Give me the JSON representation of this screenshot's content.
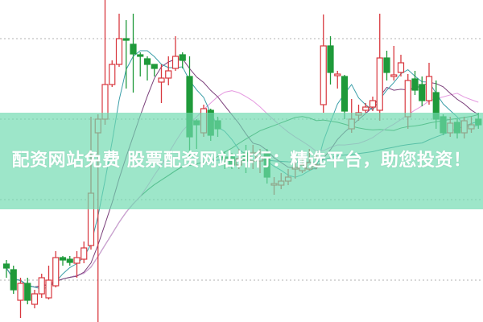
{
  "banner": {
    "title": "配资网站免费 股票配资网站排行：精选平台，助您投资！"
  },
  "colors": {
    "up": "#d8383f",
    "down": "#1f9a3a",
    "banner": "#6edaaf",
    "grid": "#b0b0b0",
    "ma5": "#3a9ea8",
    "ma10": "#7a3f7a",
    "ma20": "#e59ae0",
    "ma30": "#2f8f4f",
    "ma60": "#2e8c96"
  },
  "chart_data": {
    "type": "candlestick",
    "grid": "horizontal dotted",
    "moving_averages": [
      "ma5",
      "ma10",
      "ma20",
      "ma30",
      "ma60"
    ],
    "candles_ohlc_note_order": "open,close,high,low",
    "candles": [
      [
        72,
        67,
        77,
        55
      ],
      [
        65,
        40,
        70,
        35
      ],
      [
        27,
        48,
        55,
        5
      ],
      [
        48,
        27,
        55,
        22
      ],
      [
        22,
        35,
        40,
        17
      ],
      [
        35,
        55,
        60,
        30
      ],
      [
        30,
        52,
        70,
        28
      ],
      [
        45,
        80,
        88,
        43
      ],
      [
        80,
        77,
        82,
        70
      ],
      [
        78,
        74,
        82,
        70
      ],
      [
        73,
        80,
        88,
        55
      ],
      [
        78,
        92,
        100,
        73
      ],
      [
        95,
        160,
        255,
        90
      ],
      [
        235,
        252,
        258,
        0
      ],
      [
        252,
        295,
        400,
        245
      ],
      [
        295,
        320,
        325,
        292
      ],
      [
        320,
        352,
        383,
        317
      ],
      [
        352,
        350,
        375,
        290
      ],
      [
        345,
        333,
        383,
        285
      ],
      [
        332,
        330,
        335,
        305
      ],
      [
        327,
        320,
        330,
        300
      ],
      [
        320,
        315,
        320,
        305
      ],
      [
        298,
        303,
        320,
        272
      ],
      [
        303,
        312,
        330,
        294
      ],
      [
        315,
        330,
        355,
        312
      ],
      [
        332,
        325,
        335,
        315
      ],
      [
        305,
        230,
        330,
        205
      ],
      [
        250,
        245,
        252,
        215
      ],
      [
        235,
        265,
        270,
        230
      ],
      [
        263,
        232,
        265,
        225
      ],
      [
        250,
        240,
        255,
        230
      ],
      [
        205,
        202,
        212,
        190
      ],
      [
        205,
        195,
        210,
        190
      ],
      [
        195,
        203,
        215,
        190
      ],
      [
        210,
        200,
        220,
        185
      ],
      [
        200,
        210,
        220,
        190
      ],
      [
        200,
        205,
        215,
        185
      ],
      [
        210,
        180,
        215,
        172
      ],
      [
        172,
        172,
        180,
        158
      ],
      [
        170,
        175,
        185,
        165
      ],
      [
        175,
        180,
        190,
        170
      ],
      [
        190,
        192,
        205,
        178
      ],
      [
        188,
        195,
        205,
        185
      ],
      [
        190,
        198,
        215,
        188
      ],
      [
        195,
        195,
        210,
        190
      ],
      [
        270,
        343,
        382,
        260
      ],
      [
        343,
        310,
        355,
        295
      ],
      [
        308,
        308,
        312,
        290
      ],
      [
        305,
        262,
        307,
        252
      ],
      [
        240,
        252,
        277,
        235
      ],
      [
        257,
        260,
        270,
        250
      ],
      [
        263,
        267,
        272,
        260
      ],
      [
        267,
        275,
        280,
        262
      ],
      [
        263,
        328,
        383,
        250
      ],
      [
        328,
        310,
        337,
        300
      ],
      [
        305,
        307,
        343,
        300
      ],
      [
        310,
        322,
        332,
        305
      ],
      [
        255,
        300,
        308,
        240
      ],
      [
        302,
        288,
        312,
        282
      ],
      [
        295,
        275,
        305,
        268
      ],
      [
        275,
        305,
        322,
        270
      ],
      [
        285,
        252,
        300,
        240
      ],
      [
        255,
        235,
        258,
        232
      ],
      [
        235,
        247,
        255,
        230
      ],
      [
        248,
        235,
        252,
        228
      ],
      [
        235,
        250,
        255,
        228
      ],
      [
        240,
        245,
        255,
        235
      ],
      [
        252,
        245,
        260,
        240
      ]
    ]
  }
}
